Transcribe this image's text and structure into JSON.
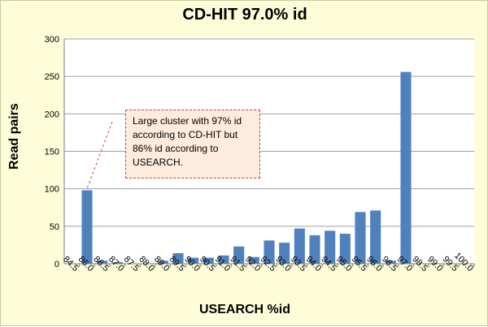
{
  "chart_data": {
    "type": "bar",
    "title": "CD-HIT 97.0% id",
    "xlabel": "USEARCH %id",
    "ylabel": "Read pairs",
    "ylim": [
      0,
      300
    ],
    "yticks": [
      0,
      50,
      100,
      150,
      200,
      250,
      300
    ],
    "grid": true,
    "categories": [
      "84.5",
      "86.0",
      "86.5",
      "87.0",
      "87.5",
      "88.0",
      "89.0",
      "89.5",
      "90.0",
      "90.5",
      "91.0",
      "91.5",
      "92.0",
      "92.5",
      "93.0",
      "93.5",
      "94.0",
      "94.5",
      "95.0",
      "95.5",
      "96.0",
      "96.5",
      "97.0",
      "98.5",
      "99.0",
      "99.5",
      "100.0"
    ],
    "values": [
      0,
      98,
      4,
      2,
      0,
      0,
      4,
      14,
      8,
      8,
      11,
      23,
      9,
      31,
      28,
      47,
      38,
      44,
      40,
      69,
      71,
      4,
      256,
      0,
      0,
      0,
      0
    ],
    "bar_color": "#4f81bd",
    "annotation": {
      "text": "Large cluster with 97% id according to CD-HIT but 86% id according to USEARCH.",
      "border_color": "#d04040",
      "fill_color": "#fdebdd"
    }
  }
}
